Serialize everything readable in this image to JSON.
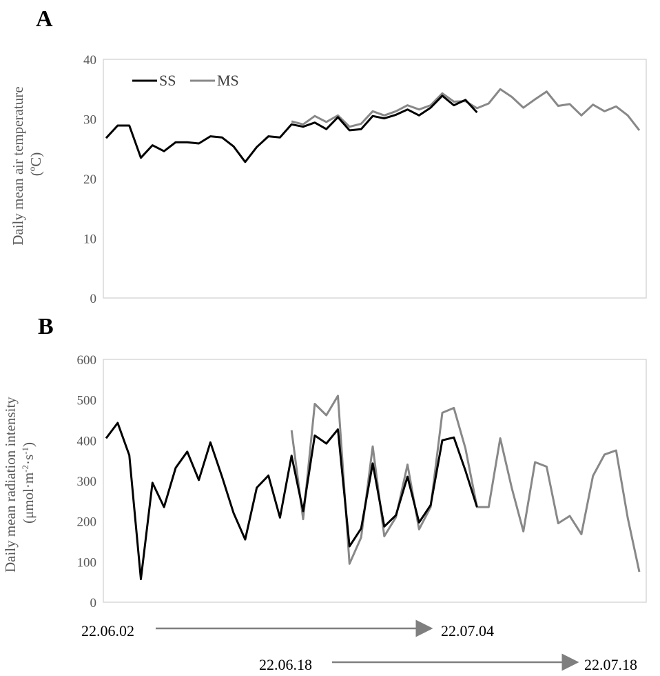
{
  "chart_data": [
    {
      "panel": "A",
      "type": "line",
      "ylabel": "Daily mean air temperature (ºC)",
      "ylabel_lines": [
        "Daily mean air temperature",
        "(ºC)"
      ],
      "ylim": [
        0,
        40
      ],
      "yticks": [
        0,
        10,
        20,
        30,
        40
      ],
      "grid": false,
      "legend_position": "top-left",
      "series": [
        {
          "name": "SS",
          "color": "#000000",
          "start_index": 0,
          "values": [
            26.8,
            28.9,
            28.9,
            23.5,
            25.6,
            24.6,
            26.1,
            26.1,
            25.9,
            27.1,
            26.9,
            25.4,
            22.8,
            25.3,
            27.1,
            26.9,
            29.1,
            28.7,
            29.4,
            28.3,
            30.3,
            28.1,
            28.3,
            30.5,
            30.1,
            30.7,
            31.6,
            30.6,
            31.9,
            33.9,
            32.3,
            33.2,
            31.1
          ]
        },
        {
          "name": "MS",
          "color": "#888888",
          "start_index": 16,
          "values": [
            29.6,
            29.1,
            30.5,
            29.5,
            30.6,
            28.7,
            29.2,
            31.3,
            30.6,
            31.3,
            32.3,
            31.6,
            32.3,
            34.3,
            32.9,
            33.0,
            31.8,
            32.6,
            35.0,
            33.7,
            31.9,
            33.3,
            34.6,
            32.2,
            32.5,
            30.6,
            32.4,
            31.3,
            32.1,
            30.6,
            28.1
          ]
        }
      ]
    },
    {
      "panel": "B",
      "type": "line",
      "ylabel": "Daily mean radiation intensity (μmol·m-2·s-1)",
      "ylabel_lines": [
        "Daily mean radiation intensity",
        "(μmol·m",
        "-2",
        "·s",
        "-1",
        ")"
      ],
      "ylim": [
        0,
        600
      ],
      "yticks": [
        0,
        100,
        200,
        300,
        400,
        500,
        600
      ],
      "grid": false,
      "series": [
        {
          "name": "SS",
          "color": "#000000",
          "start_index": 0,
          "values": [
            405,
            443,
            363,
            57,
            295,
            235,
            332,
            372,
            302,
            395,
            310,
            220,
            155,
            283,
            313,
            209,
            362,
            225,
            412,
            392,
            427,
            138,
            182,
            343,
            187,
            215,
            310,
            197,
            240,
            400,
            407,
            325,
            235
          ]
        },
        {
          "name": "MS",
          "color": "#888888",
          "start_index": 16,
          "values": [
            425,
            205,
            490,
            462,
            510,
            95,
            160,
            385,
            163,
            210,
            340,
            180,
            235,
            468,
            480,
            380,
            235,
            235,
            405,
            282,
            175,
            346,
            335,
            195,
            213,
            168,
            312,
            365,
            375,
            208,
            75
          ]
        }
      ]
    }
  ],
  "dates": {
    "row1_start": "22.06.02",
    "row1_end": "22.07.04",
    "row2_start": "22.06.18",
    "row2_end": "22.07.18"
  }
}
